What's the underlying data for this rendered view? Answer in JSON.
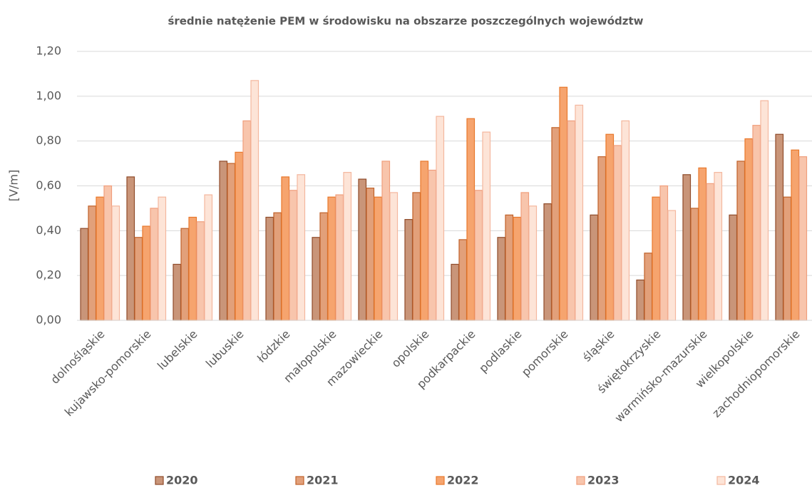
{
  "chart_data": {
    "type": "bar",
    "title": "średnie natężenie PEM w środowisku na obszarze poszczególnych województw",
    "y_label": "[V/m]",
    "categories": [
      "dolnośląskie",
      "kujawsko-pomorskie",
      "lubelskie",
      "lubuskie",
      "łódzkie",
      "małopolskie",
      "mazowieckie",
      "opolskie",
      "podkarpackie",
      "podlaskie",
      "pomorskie",
      "śląskie",
      "świętokrzyskie",
      "warmińsko-mazurskie",
      "wielkopolskie",
      "zachodniopomorskie"
    ],
    "series": [
      {
        "name": "2020",
        "color": "#c99579",
        "stroke": "#8f4b2a",
        "values": [
          0.41,
          0.64,
          0.25,
          0.71,
          0.46,
          0.37,
          0.63,
          0.45,
          0.25,
          0.37,
          0.52,
          0.47,
          0.18,
          0.65,
          0.47,
          0.83
        ]
      },
      {
        "name": "2021",
        "color": "#e2a07a",
        "stroke": "#c0622a",
        "values": [
          0.51,
          0.37,
          0.41,
          0.7,
          0.48,
          0.48,
          0.59,
          0.57,
          0.36,
          0.47,
          0.86,
          0.73,
          0.3,
          0.5,
          0.71,
          0.55
        ]
      },
      {
        "name": "2022",
        "color": "#f6a46e",
        "stroke": "#e8782c",
        "values": [
          0.55,
          0.42,
          0.46,
          0.75,
          0.64,
          0.55,
          0.55,
          0.71,
          0.9,
          0.46,
          1.04,
          0.83,
          0.55,
          0.68,
          0.81,
          0.76
        ]
      },
      {
        "name": "2023",
        "color": "#f8c5ac",
        "stroke": "#f09e7c",
        "values": [
          0.6,
          0.5,
          0.44,
          0.89,
          0.58,
          0.56,
          0.71,
          0.67,
          0.58,
          0.57,
          0.89,
          0.78,
          0.6,
          0.61,
          0.87,
          0.73
        ]
      },
      {
        "name": "2024",
        "color": "#fde4d7",
        "stroke": "#f4b79e",
        "values": [
          0.51,
          0.55,
          0.56,
          1.07,
          0.65,
          0.66,
          0.57,
          0.91,
          0.84,
          0.51,
          0.96,
          0.89,
          0.49,
          0.66,
          0.98,
          null
        ]
      }
    ],
    "ylim": [
      0,
      1.2
    ],
    "yticks": [
      {
        "value": 0,
        "label": "0,00"
      },
      {
        "value": 0.2,
        "label": "0,20"
      },
      {
        "value": 0.4,
        "label": "0,40"
      },
      {
        "value": 0.6,
        "label": "0,60"
      },
      {
        "value": 0.8,
        "label": "0,80"
      },
      {
        "value": 1.0,
        "label": "1,00"
      },
      {
        "value": 1.2,
        "label": "1,20"
      }
    ],
    "grid": true,
    "legend": "bottom"
  }
}
